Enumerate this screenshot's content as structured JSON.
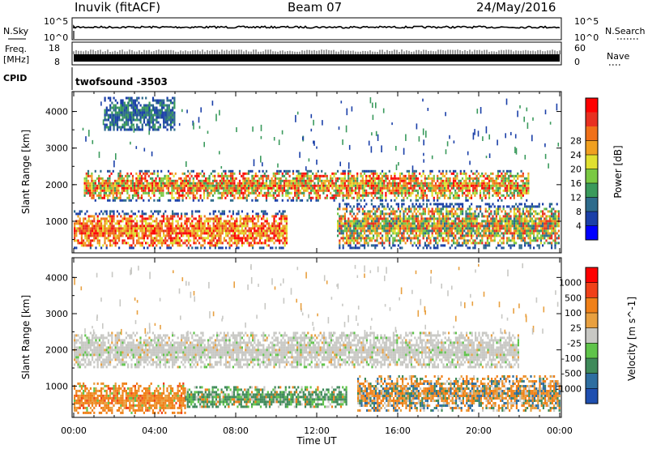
{
  "header": {
    "station": "Inuvik (fitACF)",
    "beam": "Beam 07",
    "date": "24/May/2016"
  },
  "nsky_panel": {
    "left_label": "N.Sky",
    "right_label": "N.Search",
    "ticks_left": [
      "10^5",
      "10^0"
    ],
    "ticks_right": [
      "10^5",
      "10^0"
    ],
    "legend_style": "dotted"
  },
  "freq_panel": {
    "left_label_line1": "Freq.",
    "left_label_line2": "[MHz]",
    "right_label": "Nave",
    "ticks_left": [
      "18",
      "8"
    ],
    "ticks_right": [
      "60",
      "0"
    ]
  },
  "cpid": {
    "label": "CPID",
    "program": "twofsound -3503"
  },
  "chart_data": [
    {
      "type": "heatmap",
      "title": "",
      "xlabel": "Time UT",
      "ylabel": "Slant Range [km]",
      "xticks": [
        "00:00",
        "04:00",
        "08:00",
        "12:00",
        "16:00",
        "20:00",
        "00:00"
      ],
      "xlim_hours": [
        0,
        24
      ],
      "yticks": [
        1000,
        2000,
        3000,
        4000
      ],
      "ylim": [
        180,
        4500
      ],
      "colorbar": {
        "label": "Power [dB]",
        "ticks": [
          4,
          8,
          12,
          16,
          20,
          24,
          28
        ],
        "colors": [
          "#0000ff",
          "#1a3fa8",
          "#2e6b8c",
          "#3a9a5c",
          "#7ac943",
          "#e0e030",
          "#f0a020",
          "#f07018",
          "#e83020",
          "#ff0000"
        ]
      },
      "scatter_bands_km": [
        {
          "from_h": 0.5,
          "to_h": 22.5,
          "lo": 1600,
          "hi": 2400,
          "level": "mid-high"
        },
        {
          "from_h": 0.0,
          "to_h": 10.5,
          "lo": 250,
          "hi": 1300,
          "level": "high"
        },
        {
          "from_h": 13.0,
          "to_h": 24.0,
          "lo": 300,
          "hi": 1500,
          "level": "mid"
        },
        {
          "from_h": 1.5,
          "to_h": 5.0,
          "lo": 3500,
          "hi": 4400,
          "level": "low"
        }
      ]
    },
    {
      "type": "heatmap",
      "title": "",
      "xlabel": "Time UT",
      "ylabel": "Slant Range [km]",
      "xticks": [
        "00:00",
        "04:00",
        "08:00",
        "12:00",
        "16:00",
        "20:00",
        "00:00"
      ],
      "xlim_hours": [
        0,
        24
      ],
      "yticks": [
        1000,
        2000,
        3000,
        4000
      ],
      "ylim": [
        180,
        4500
      ],
      "colorbar": {
        "label": "Velocity [m s^-1]",
        "ticks": [
          1000,
          500,
          100,
          25,
          -25,
          -100,
          -500,
          -1000
        ],
        "colors": [
          "#1f4fb0",
          "#2e6ea0",
          "#3f8a5a",
          "#5fc44a",
          "#c8c8c4",
          "#e8a040",
          "#f08018",
          "#f04018",
          "#ff0000"
        ]
      },
      "scatter_bands_km": [
        {
          "from_h": 0.0,
          "to_h": 22.0,
          "lo": 1500,
          "hi": 2500,
          "level": "ground-scatter-gray"
        },
        {
          "from_h": 0.0,
          "to_h": 5.5,
          "lo": 250,
          "hi": 1100,
          "level": "orange-negative"
        },
        {
          "from_h": 5.5,
          "to_h": 13.5,
          "lo": 400,
          "hi": 1000,
          "level": "green-positive"
        },
        {
          "from_h": 14.0,
          "to_h": 24.0,
          "lo": 300,
          "hi": 1300,
          "level": "orange-blue-mixed"
        }
      ]
    }
  ]
}
